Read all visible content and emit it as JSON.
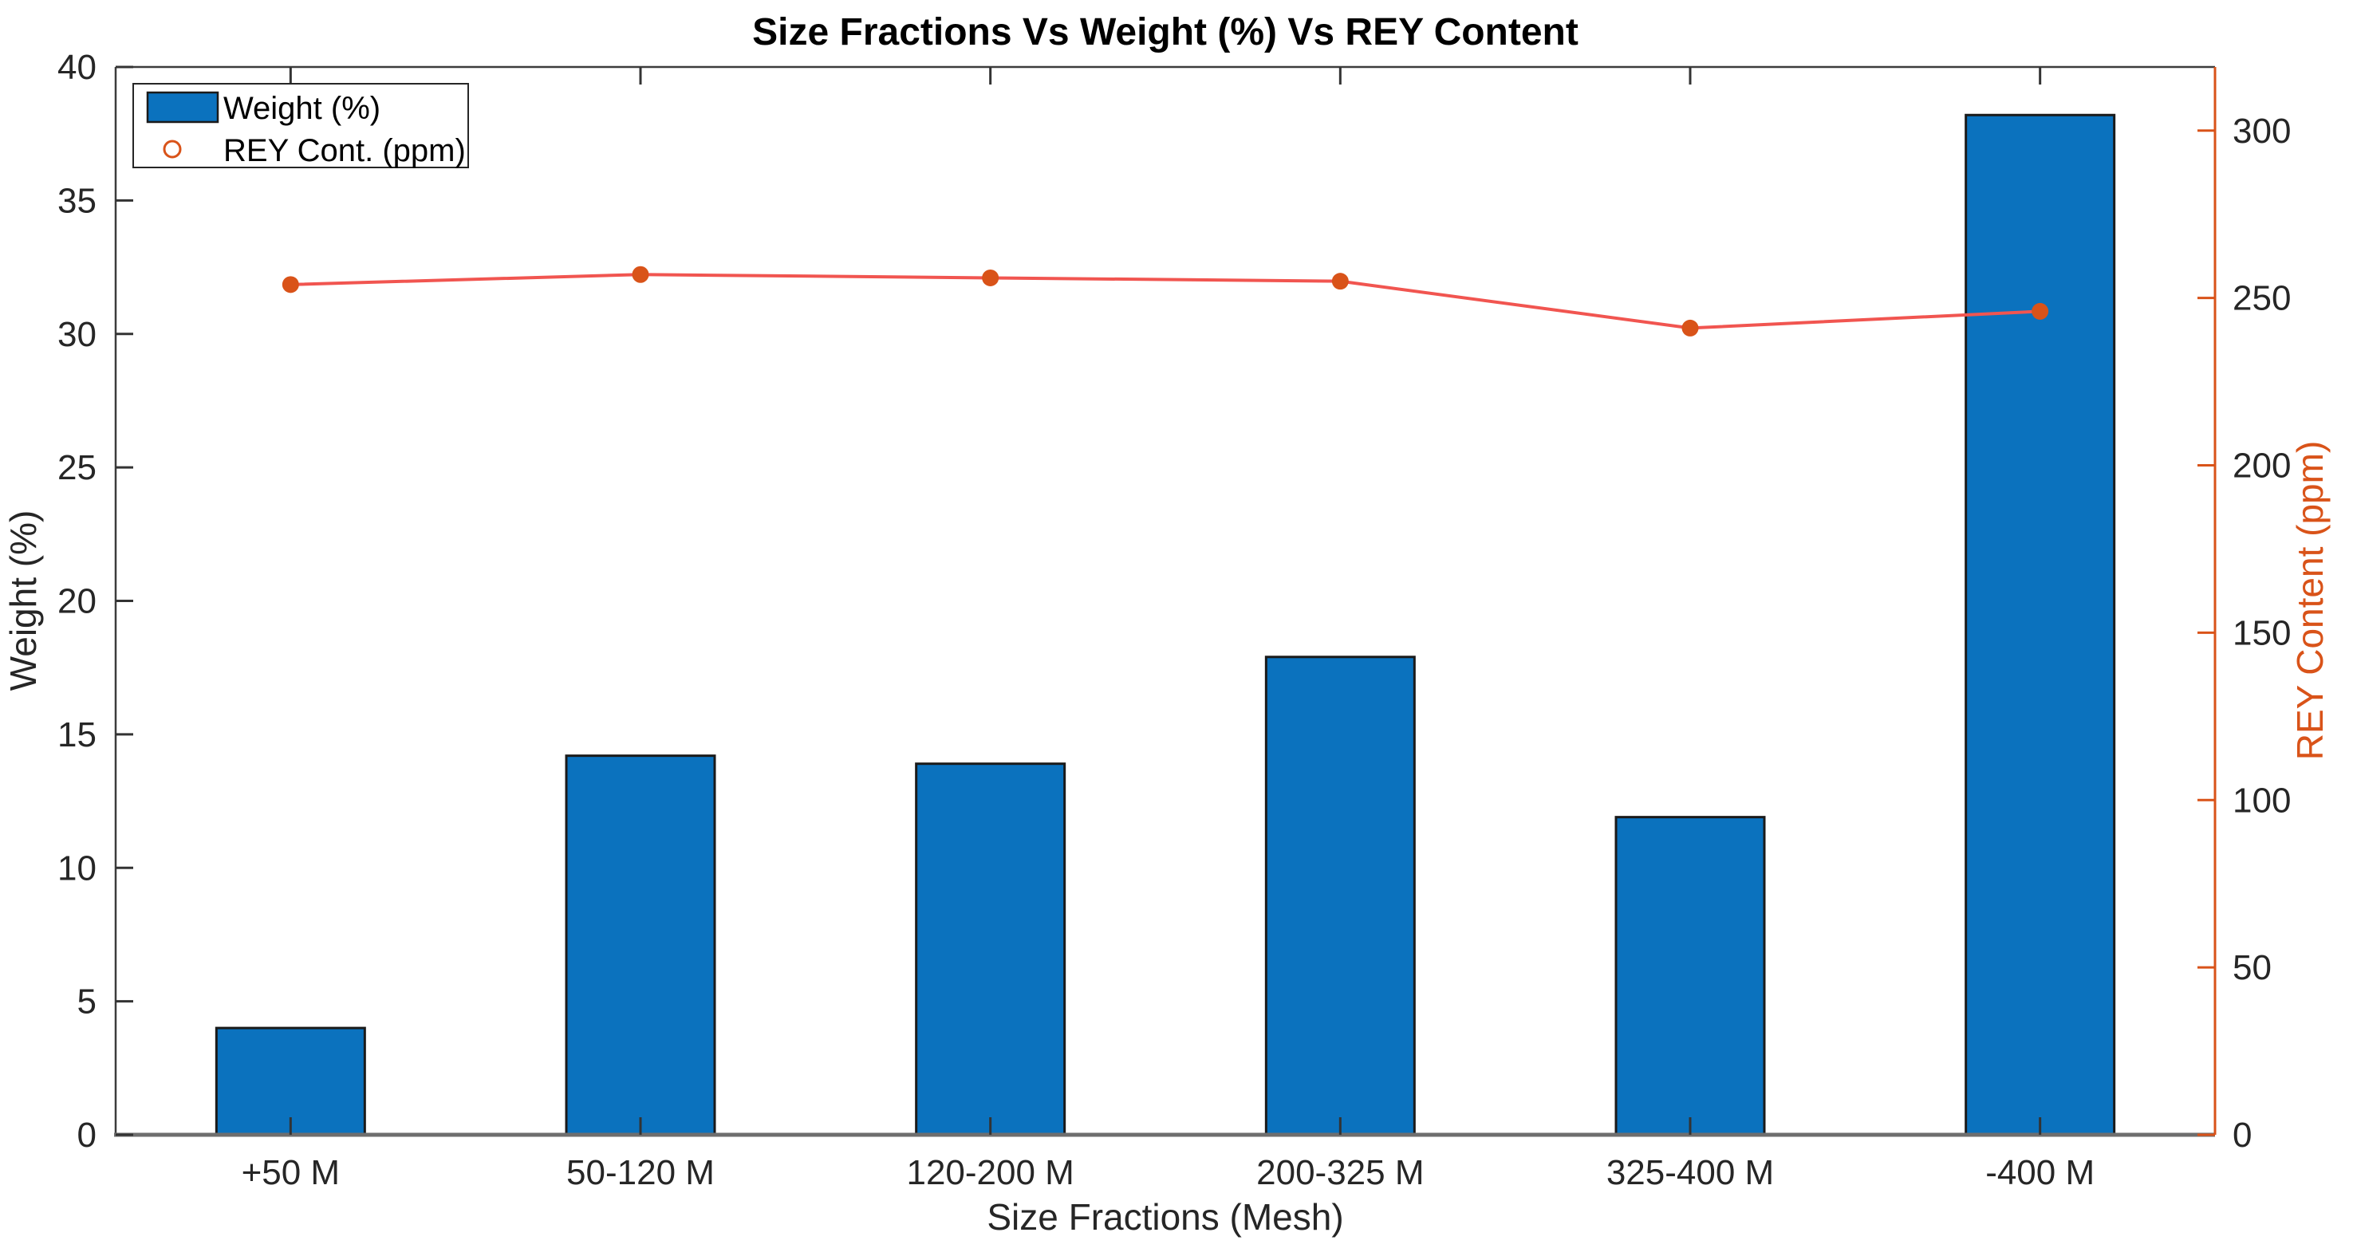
{
  "figure": {
    "background": "#ffffff"
  },
  "chart_data": {
    "type": "combo",
    "title": "Size Fractions Vs Weight (%) Vs REY Content",
    "xlabel": "Size Fractions (Mesh)",
    "ylabel_left": "Weight (%)",
    "ylabel_right": "REY Content (ppm)",
    "categories": [
      "+50 M",
      "50-120 M",
      "120-200 M",
      "200-325 M",
      "325-400 M",
      "-400 M"
    ],
    "series": [
      {
        "name": "Weight (%)",
        "type": "bar",
        "axis": "left",
        "color": "#0B72BE",
        "edge_color": "#1a1a1a",
        "values": [
          4.0,
          14.2,
          13.9,
          17.9,
          11.9,
          38.2
        ]
      },
      {
        "name": "REY Cont. (ppm)",
        "type": "line",
        "axis": "right",
        "line_color": "#F15550",
        "marker_color": "#D95319",
        "values": [
          254,
          257,
          256,
          255,
          241,
          246
        ]
      }
    ],
    "left_axis": {
      "min": 0,
      "max": 40,
      "ticks": [
        0,
        5,
        10,
        15,
        20,
        25,
        30,
        35,
        40
      ],
      "color": "#262626"
    },
    "right_axis": {
      "min": 0,
      "max": 319,
      "ticks": [
        0,
        50,
        100,
        150,
        200,
        250,
        300
      ],
      "color": "#D95319"
    },
    "legend": {
      "position": "top-left",
      "items": [
        "Weight (%)",
        "REY Cont. (ppm)"
      ]
    },
    "grid": false
  }
}
